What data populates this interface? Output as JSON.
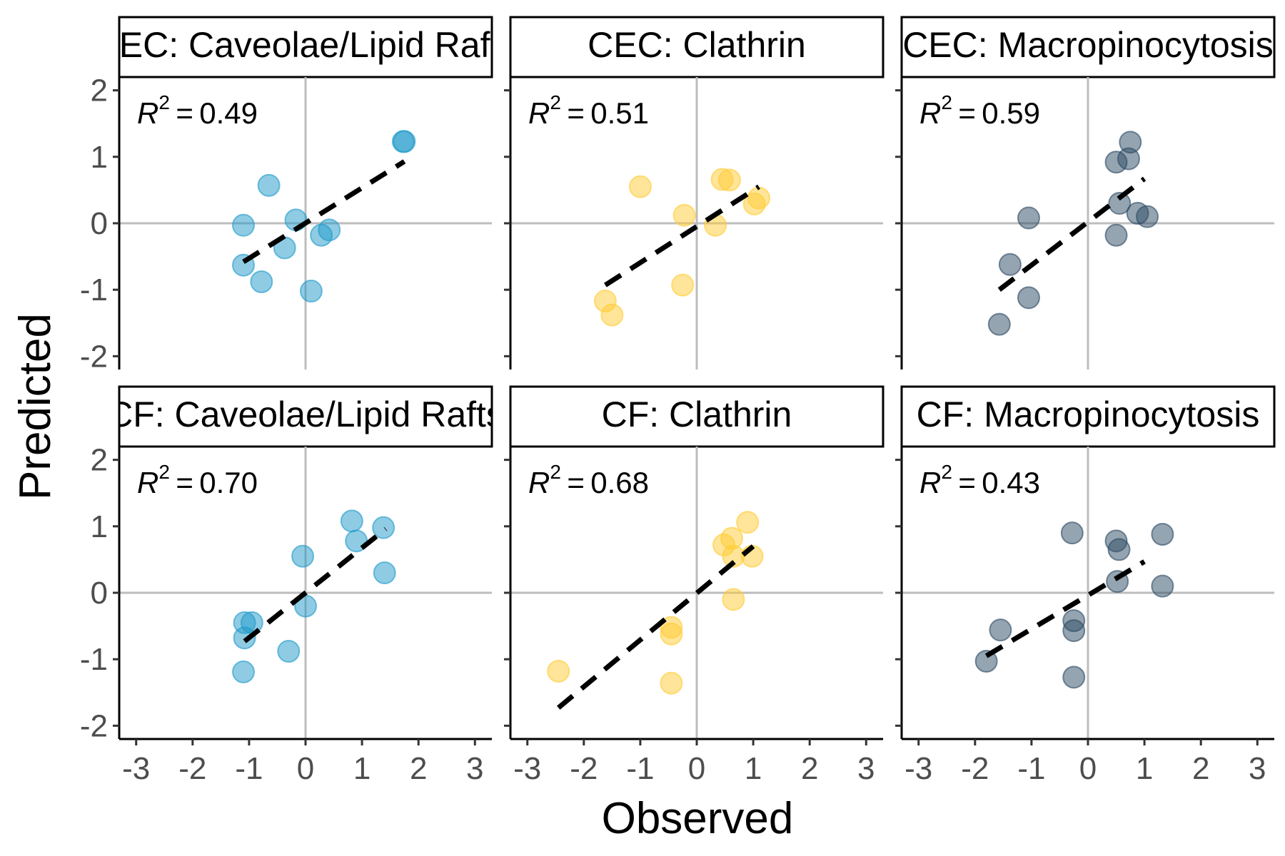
{
  "chart_data": {
    "type": "scatter",
    "xlabel": "Observed",
    "ylabel": "Predicted",
    "xlim": [
      -3.3,
      3.3
    ],
    "ylim": [
      -2.2,
      2.2
    ],
    "x_ticks": [
      "-3",
      "-2",
      "-1",
      "0",
      "1",
      "2",
      "3"
    ],
    "y_ticks": [
      "-2",
      "-1",
      "0",
      "1",
      "2"
    ],
    "x_tick_values": [
      -3,
      -2,
      -1,
      0,
      1,
      2,
      3
    ],
    "y_tick_values": [
      -2,
      -1,
      0,
      1,
      2
    ],
    "colors": {
      "caveolae": "#1f9ac9",
      "clathrin": "#ffcc33",
      "macro": "#2b4a63",
      "fit_line": "#000000",
      "zero_line": "#bdbdbd"
    },
    "panels": [
      {
        "title": "CEC: Caveolae/Lipid Rafts",
        "r2_value": "0.49",
        "color": "#1f9ac9",
        "points": [
          [
            -1.1,
            -0.63
          ],
          [
            -1.1,
            -0.03
          ],
          [
            -0.78,
            -0.88
          ],
          [
            -0.65,
            0.57
          ],
          [
            -0.37,
            -0.37
          ],
          [
            -0.17,
            0.05
          ],
          [
            0.1,
            -1.02
          ],
          [
            0.28,
            -0.18
          ],
          [
            0.42,
            -0.1
          ],
          [
            1.73,
            1.23
          ],
          [
            1.75,
            1.23
          ]
        ],
        "fit": [
          [
            -1.1,
            -0.58
          ],
          [
            1.75,
            0.93
          ]
        ]
      },
      {
        "title": "CEC: Clathrin",
        "r2_value": "0.51",
        "color": "#ffcc33",
        "points": [
          [
            -1.62,
            -1.17
          ],
          [
            -1.5,
            -1.38
          ],
          [
            -1.0,
            0.55
          ],
          [
            -0.22,
            0.12
          ],
          [
            -0.25,
            -0.93
          ],
          [
            0.33,
            -0.03
          ],
          [
            0.45,
            0.66
          ],
          [
            0.58,
            0.65
          ],
          [
            1.02,
            0.29
          ],
          [
            1.1,
            0.38
          ]
        ],
        "fit": [
          [
            -1.62,
            -0.93
          ],
          [
            1.1,
            0.55
          ]
        ]
      },
      {
        "title": "CEC: Macropinocytosis",
        "r2_value": "0.59",
        "color": "#2b4a63",
        "points": [
          [
            -1.57,
            -1.52
          ],
          [
            -1.38,
            -0.62
          ],
          [
            -1.05,
            0.08
          ],
          [
            -1.05,
            -1.12
          ],
          [
            0.5,
            0.92
          ],
          [
            0.5,
            -0.18
          ],
          [
            0.56,
            0.3
          ],
          [
            0.72,
            0.97
          ],
          [
            0.75,
            1.22
          ],
          [
            0.88,
            0.15
          ],
          [
            1.05,
            0.1
          ]
        ],
        "fit": [
          [
            -1.57,
            -1.0
          ],
          [
            1.0,
            0.67
          ]
        ]
      },
      {
        "title": "CF: Caveolae/Lipid Rafts",
        "r2_value": "0.70",
        "color": "#1f9ac9",
        "points": [
          [
            -1.1,
            -1.19
          ],
          [
            -1.08,
            -0.68
          ],
          [
            -1.08,
            -0.45
          ],
          [
            -0.95,
            -0.45
          ],
          [
            -0.3,
            -0.88
          ],
          [
            -0.05,
            0.55
          ],
          [
            0.0,
            -0.2
          ],
          [
            0.82,
            1.08
          ],
          [
            0.9,
            0.78
          ],
          [
            1.38,
            0.98
          ],
          [
            1.4,
            0.3
          ]
        ],
        "fit": [
          [
            -1.08,
            -0.73
          ],
          [
            1.42,
            0.96
          ]
        ]
      },
      {
        "title": "CF: Clathrin",
        "r2_value": "0.68",
        "color": "#ffcc33",
        "points": [
          [
            -2.45,
            -1.18
          ],
          [
            -0.45,
            -0.62
          ],
          [
            -0.45,
            -0.52
          ],
          [
            -0.45,
            -1.36
          ],
          [
            0.48,
            0.72
          ],
          [
            0.62,
            0.82
          ],
          [
            0.65,
            0.55
          ],
          [
            0.65,
            -0.1
          ],
          [
            0.9,
            1.06
          ],
          [
            0.98,
            0.55
          ]
        ],
        "fit": [
          [
            -2.45,
            -1.73
          ],
          [
            1.0,
            0.7
          ]
        ]
      },
      {
        "title": "CF: Macropinocytosis",
        "r2_value": "0.43",
        "color": "#2b4a63",
        "points": [
          [
            -1.8,
            -1.03
          ],
          [
            -1.55,
            -0.56
          ],
          [
            -0.28,
            0.9
          ],
          [
            -0.25,
            -0.42
          ],
          [
            -0.25,
            -0.57
          ],
          [
            -0.25,
            -1.27
          ],
          [
            0.5,
            0.78
          ],
          [
            0.55,
            0.65
          ],
          [
            0.52,
            0.17
          ],
          [
            1.32,
            0.88
          ],
          [
            1.32,
            0.1
          ]
        ],
        "fit": [
          [
            -1.8,
            -0.95
          ],
          [
            1.0,
            0.47
          ]
        ]
      }
    ]
  }
}
